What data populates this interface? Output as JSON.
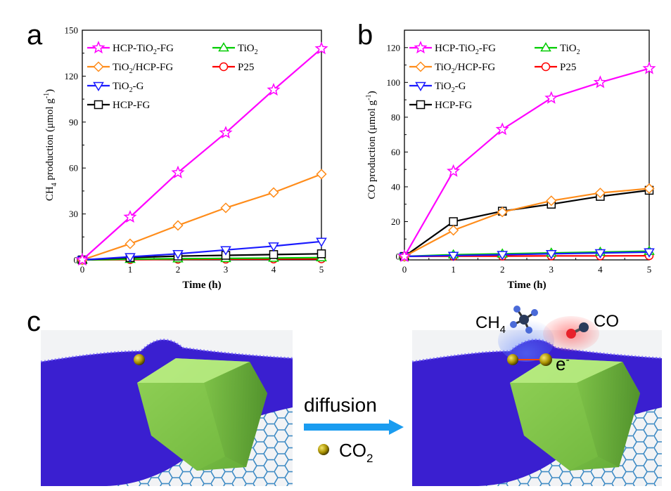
{
  "panels": {
    "a": "a",
    "b": "b",
    "c": "c"
  },
  "colors": {
    "HCP-TiO2-FG": "#ff00ff",
    "TiO2/HCP-FG": "#ff8c1a",
    "TiO2-G": "#1a1aff",
    "HCP-FG": "#000000",
    "TiO2": "#00cc00",
    "P25": "#ff0000",
    "polymer": "#3a1fd0",
    "crystal": "#8fd14f",
    "arrow": "#1a9cf0",
    "co2_particle": "#b8a000",
    "graphene": "#2a7fbf"
  },
  "chart_data": [
    {
      "type": "line",
      "panel": "a",
      "xlabel": "Time (h)",
      "ylabel_main": "CH",
      "ylabel_sub": "4",
      "ylabel_rest": " production (μmol g",
      "ylabel_sup": "-1",
      "ylabel_close": ")",
      "xlim": [
        0,
        5
      ],
      "ylim": [
        0,
        150
      ],
      "xticks": [
        "0",
        "1",
        "2",
        "3",
        "4",
        "5"
      ],
      "yticks": [
        "0",
        "30",
        "60",
        "90",
        "120",
        "150"
      ],
      "x": [
        0,
        1,
        2,
        3,
        4,
        5
      ],
      "series": [
        {
          "name": "HCP-TiO2-FG",
          "label_main": "HCP-TiO",
          "label_sub": "2",
          "label_rest": "-FG",
          "marker": "star",
          "values": [
            0,
            28,
            57,
            83,
            111,
            138
          ]
        },
        {
          "name": "TiO2/HCP-FG",
          "label_main": "TiO",
          "label_sub": "2",
          "label_rest": "/HCP-FG",
          "marker": "diamond",
          "values": [
            0,
            10.5,
            22.5,
            34,
            44,
            56
          ]
        },
        {
          "name": "TiO2-G",
          "label_main": "TiO",
          "label_sub": "2",
          "label_rest": "-G",
          "marker": "triangle-down",
          "values": [
            0,
            2,
            4,
            6.5,
            9,
            12
          ]
        },
        {
          "name": "HCP-FG",
          "label_main": "HCP-FG",
          "label_sub": "",
          "label_rest": "",
          "marker": "square",
          "values": [
            0,
            1.5,
            2.5,
            3,
            3.5,
            4
          ]
        },
        {
          "name": "TiO2",
          "label_main": "TiO",
          "label_sub": "2",
          "label_rest": "",
          "marker": "triangle-up",
          "values": [
            0,
            0.5,
            0.8,
            1,
            1.2,
            1.5
          ]
        },
        {
          "name": "P25",
          "label_main": "P25",
          "label_sub": "",
          "label_rest": "",
          "marker": "circle",
          "values": [
            0,
            0.2,
            0.4,
            0.5,
            0.6,
            0.7
          ]
        }
      ],
      "legend": "top-left"
    },
    {
      "type": "line",
      "panel": "b",
      "xlabel": "Time (h)",
      "ylabel_main": "CO production (μmol g",
      "ylabel_sub": "",
      "ylabel_rest": "",
      "ylabel_sup": "-1",
      "ylabel_close": ")",
      "xlim": [
        0,
        5
      ],
      "ylim": [
        -2,
        130
      ],
      "xticks": [
        "0",
        "1",
        "2",
        "3",
        "4",
        "5"
      ],
      "yticks": [
        "0",
        "20",
        "40",
        "60",
        "80",
        "100",
        "120"
      ],
      "x": [
        0,
        1,
        2,
        3,
        4,
        5
      ],
      "series": [
        {
          "name": "HCP-TiO2-FG",
          "label_main": "HCP-TiO",
          "label_sub": "2",
          "label_rest": "-FG",
          "marker": "star",
          "values": [
            0,
            49,
            73,
            91,
            100,
            108
          ]
        },
        {
          "name": "TiO2/HCP-FG",
          "label_main": "TiO",
          "label_sub": "2",
          "label_rest": "/HCP-FG",
          "marker": "diamond",
          "values": [
            0,
            15,
            25.5,
            32,
            36.5,
            39
          ]
        },
        {
          "name": "TiO2-G",
          "label_main": "TiO",
          "label_sub": "2",
          "label_rest": "-G",
          "marker": "triangle-down",
          "values": [
            0,
            0.5,
            1,
            1.5,
            2,
            2.5
          ]
        },
        {
          "name": "HCP-FG",
          "label_main": "HCP-FG",
          "label_sub": "",
          "label_rest": "",
          "marker": "square",
          "values": [
            0,
            20,
            26,
            30,
            34.5,
            38
          ]
        },
        {
          "name": "TiO2",
          "label_main": "TiO",
          "label_sub": "2",
          "label_rest": "",
          "marker": "triangle-up",
          "values": [
            0,
            1,
            1.5,
            2,
            2.5,
            3
          ]
        },
        {
          "name": "P25",
          "label_main": "P25",
          "label_sub": "",
          "label_rest": "",
          "marker": "circle",
          "values": [
            0,
            0.1,
            0.2,
            0.3,
            0.3,
            0.4
          ]
        }
      ],
      "legend": "top-left"
    }
  ],
  "scene": {
    "diffusion_label": "diffusion",
    "co2_main": "CO",
    "co2_sub": "2",
    "ch4_main": "CH",
    "ch4_sub": "4",
    "co_label": "CO",
    "electron_main": "e",
    "electron_sup": "-"
  }
}
